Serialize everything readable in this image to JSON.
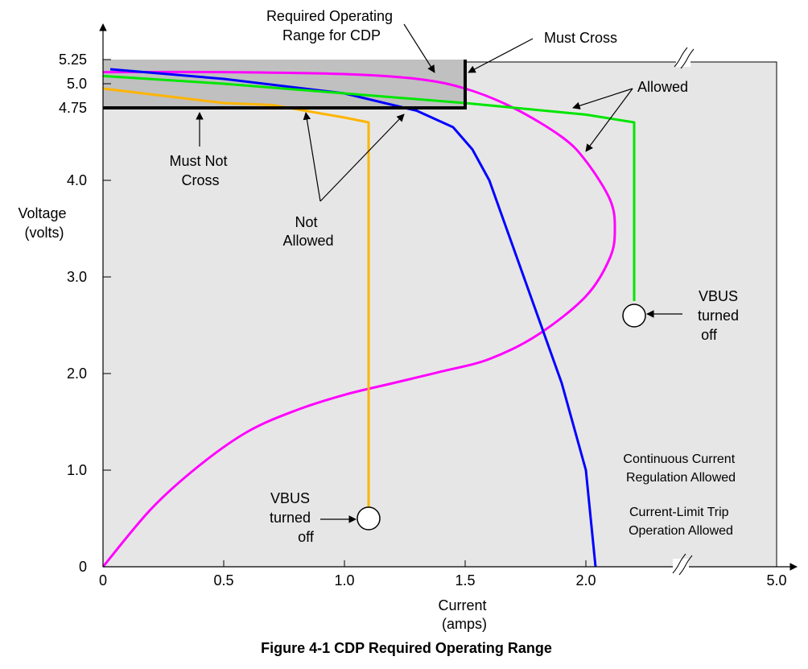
{
  "chart_data": {
    "type": "line",
    "title": "",
    "caption": "Figure 4-1  CDP Required Operating Range",
    "xlabel": [
      "Current",
      "(amps)"
    ],
    "ylabel": [
      "Voltage",
      "(volts)"
    ],
    "x_ticks": [
      "0",
      "0.5",
      "1.0",
      "1.5",
      "2.0",
      "5.0"
    ],
    "y_ticks": [
      "0",
      "1.0",
      "2.0",
      "3.0",
      "4.0",
      "4.75",
      "5.0",
      "5.25"
    ],
    "xlim": [
      0,
      2.8
    ],
    "ylim": [
      0,
      5.25
    ],
    "axis_break_label": "5.0",
    "region": {
      "label": [
        "Required Operating",
        "Range for CDP"
      ],
      "x": [
        0,
        1.5
      ],
      "y": [
        4.75,
        5.25
      ]
    },
    "series": [
      {
        "color": "#ff00ff",
        "points": [
          [
            0,
            0
          ],
          [
            0.2,
            0.6
          ],
          [
            0.4,
            1.05
          ],
          [
            0.6,
            1.4
          ],
          [
            0.8,
            1.62
          ],
          [
            1.0,
            1.78
          ],
          [
            1.2,
            1.9
          ],
          [
            1.4,
            2.02
          ],
          [
            1.6,
            2.15
          ],
          [
            1.8,
            2.4
          ],
          [
            2.0,
            2.8
          ],
          [
            2.1,
            3.2
          ],
          [
            2.12,
            3.5
          ],
          [
            2.1,
            3.8
          ],
          [
            2.0,
            4.2
          ],
          [
            1.9,
            4.45
          ],
          [
            1.7,
            4.75
          ],
          [
            1.5,
            4.95
          ],
          [
            1.3,
            5.05
          ],
          [
            1.0,
            5.1
          ],
          [
            0.5,
            5.12
          ],
          [
            0,
            5.12
          ]
        ]
      },
      {
        "color": "#0000ff",
        "points": [
          [
            0.03,
            5.15
          ],
          [
            0.5,
            5.05
          ],
          [
            1.0,
            4.9
          ],
          [
            1.3,
            4.72
          ],
          [
            1.45,
            4.55
          ],
          [
            1.53,
            4.32
          ],
          [
            1.6,
            4.0
          ],
          [
            1.7,
            3.3
          ],
          [
            1.8,
            2.6
          ],
          [
            1.9,
            1.9
          ],
          [
            2.0,
            1.0
          ],
          [
            2.04,
            0
          ]
        ]
      },
      {
        "color": "#00e600",
        "points": [
          [
            0,
            5.08
          ],
          [
            0.5,
            5.0
          ],
          [
            1.0,
            4.9
          ],
          [
            1.5,
            4.8
          ],
          [
            2.0,
            4.68
          ],
          [
            2.2,
            4.6
          ],
          [
            2.2,
            2.75
          ]
        ]
      },
      {
        "color": "#ffb400",
        "points": [
          [
            0,
            4.95
          ],
          [
            0.5,
            4.8
          ],
          [
            0.7,
            4.78
          ],
          [
            1.0,
            4.65
          ],
          [
            1.1,
            4.6
          ],
          [
            1.1,
            0.5
          ]
        ]
      }
    ],
    "markers": [
      {
        "x": 2.2,
        "y": 2.6,
        "label": [
          "VBUS",
          "turned",
          "off"
        ]
      },
      {
        "x": 1.1,
        "y": 0.5,
        "label": [
          "VBUS",
          "turned",
          "off"
        ]
      }
    ],
    "annotations": {
      "must_cross": "Must Cross",
      "allowed": "Allowed",
      "must_not_cross": [
        "Must Not",
        "Cross"
      ],
      "not_allowed": [
        "Not",
        "Allowed"
      ],
      "note1": [
        "Continuous Current",
        "Regulation Allowed"
      ],
      "note2": [
        "Current-Limit Trip",
        "Operation Allowed"
      ]
    },
    "grid": false,
    "legend": "none"
  }
}
